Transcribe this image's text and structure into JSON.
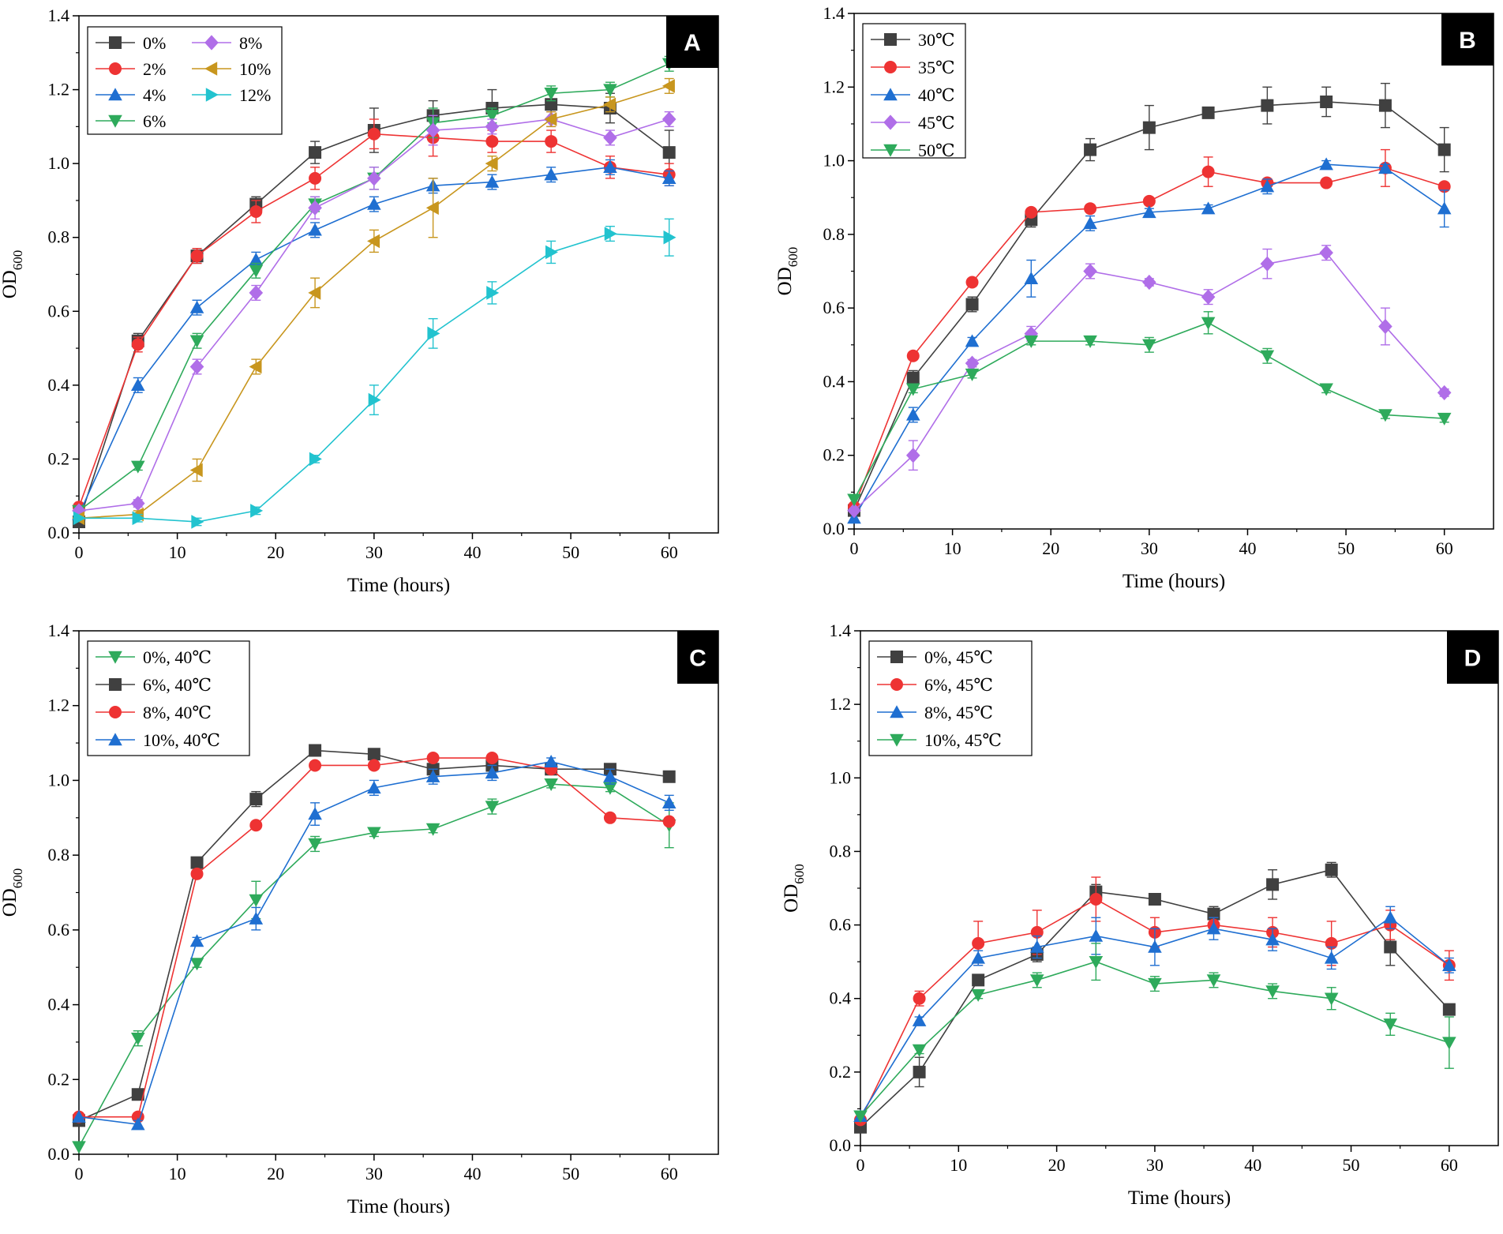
{
  "chart_data": [
    {
      "type": "line",
      "panel": "A",
      "xlabel": "Time (hours)",
      "ylabel": "OD",
      "ylabel_sub": "600",
      "xlim": [
        0,
        65
      ],
      "ylim": [
        0,
        1.4
      ],
      "xticks": [
        0,
        10,
        20,
        30,
        40,
        50,
        60
      ],
      "yticks": [
        0.0,
        0.2,
        0.4,
        0.6,
        0.8,
        1.0,
        1.2,
        1.4
      ],
      "ytick_labels": [
        "0.0",
        "0.2",
        "0.4",
        "0.6",
        "0.8",
        "1.0",
        "1.2",
        "1.4"
      ],
      "legend_columns": 2,
      "x": [
        0,
        6,
        12,
        18,
        24,
        30,
        36,
        42,
        48,
        54,
        60
      ],
      "series": [
        {
          "name": "0%",
          "marker": "square",
          "color": "#404040",
          "values": [
            0.03,
            0.52,
            0.75,
            0.89,
            1.03,
            1.09,
            1.13,
            1.15,
            1.16,
            1.15,
            1.03
          ],
          "errors": [
            0,
            0.02,
            0.02,
            0.02,
            0.03,
            0.06,
            0.04,
            0.05,
            0.04,
            0.04,
            0.06
          ]
        },
        {
          "name": "2%",
          "marker": "circle",
          "color": "#ee3333",
          "values": [
            0.07,
            0.51,
            0.75,
            0.87,
            0.96,
            1.08,
            1.07,
            1.06,
            1.06,
            0.99,
            0.97
          ],
          "errors": [
            0,
            0.02,
            0.02,
            0.03,
            0.03,
            0.04,
            0.05,
            0.03,
            0.03,
            0.03,
            0.03
          ]
        },
        {
          "name": "4%",
          "marker": "triangle-up",
          "color": "#1f6fd1",
          "values": [
            0.05,
            0.4,
            0.61,
            0.74,
            0.82,
            0.89,
            0.94,
            0.95,
            0.97,
            0.99,
            0.96
          ],
          "errors": [
            0,
            0.02,
            0.02,
            0.02,
            0.02,
            0.02,
            0.02,
            0.02,
            0.02,
            0.02,
            0.02
          ]
        },
        {
          "name": "6%",
          "marker": "triangle-down",
          "color": "#2eaa5b",
          "values": [
            0.06,
            0.18,
            0.52,
            0.71,
            0.89,
            0.96,
            1.11,
            1.13,
            1.19,
            1.2,
            1.27
          ],
          "errors": [
            0,
            0.01,
            0.02,
            0.02,
            0.02,
            0.03,
            0.04,
            0.02,
            0.02,
            0.02,
            0.02
          ]
        },
        {
          "name": "8%",
          "marker": "diamond",
          "color": "#b06ee8",
          "values": [
            0.06,
            0.08,
            0.45,
            0.65,
            0.88,
            0.96,
            1.09,
            1.1,
            1.12,
            1.07,
            1.12
          ],
          "errors": [
            0,
            0.01,
            0.02,
            0.02,
            0.03,
            0.03,
            0.04,
            0.02,
            0.02,
            0.02,
            0.02
          ]
        },
        {
          "name": "10%",
          "marker": "triangle-left",
          "color": "#c8961e",
          "values": [
            0.04,
            0.05,
            0.17,
            0.45,
            0.65,
            0.79,
            0.88,
            1.0,
            1.12,
            1.16,
            1.21
          ],
          "errors": [
            0,
            0.01,
            0.03,
            0.02,
            0.04,
            0.03,
            0.08,
            0.02,
            0.02,
            0.02,
            0.02
          ]
        },
        {
          "name": "12%",
          "marker": "triangle-right",
          "color": "#22c3cf",
          "values": [
            0.04,
            0.04,
            0.03,
            0.06,
            0.2,
            0.36,
            0.54,
            0.65,
            0.76,
            0.81,
            0.8
          ],
          "errors": [
            0,
            0.01,
            0.01,
            0.01,
            0.01,
            0.04,
            0.04,
            0.03,
            0.03,
            0.02,
            0.05
          ]
        }
      ]
    },
    {
      "type": "line",
      "panel": "B",
      "xlabel": "Time (hours)",
      "ylabel": "OD",
      "ylabel_sub": "600",
      "xlim": [
        0,
        65
      ],
      "ylim": [
        0,
        1.4
      ],
      "xticks": [
        0,
        10,
        20,
        30,
        40,
        50,
        60
      ],
      "yticks": [
        0.0,
        0.2,
        0.4,
        0.6,
        0.8,
        1.0,
        1.2,
        1.4
      ],
      "ytick_labels": [
        "0.0",
        "0.2",
        "0.4",
        "0.6",
        "0.8",
        "1.0",
        "1.2",
        "1.4"
      ],
      "legend_columns": 1,
      "x": [
        0,
        6,
        12,
        18,
        24,
        30,
        36,
        42,
        48,
        54,
        60
      ],
      "series": [
        {
          "name": "30℃",
          "marker": "square",
          "color": "#404040",
          "values": [
            0.05,
            0.41,
            0.61,
            0.84,
            1.03,
            1.09,
            1.13,
            1.15,
            1.16,
            1.15,
            1.03
          ],
          "errors": [
            0,
            0.02,
            0.02,
            0.02,
            0.03,
            0.06,
            0.01,
            0.05,
            0.04,
            0.06,
            0.06
          ]
        },
        {
          "name": "35℃",
          "marker": "circle",
          "color": "#ee3333",
          "values": [
            0.06,
            0.47,
            0.67,
            0.86,
            0.87,
            0.89,
            0.97,
            0.94,
            0.94,
            0.98,
            0.93
          ],
          "errors": [
            0,
            0.01,
            0.01,
            0.01,
            0.01,
            0.01,
            0.04,
            0.01,
            0.01,
            0.05,
            0.01
          ]
        },
        {
          "name": "40℃",
          "marker": "triangle-up",
          "color": "#1f6fd1",
          "values": [
            0.03,
            0.31,
            0.51,
            0.68,
            0.83,
            0.86,
            0.87,
            0.93,
            0.99,
            0.98,
            0.87
          ],
          "errors": [
            0,
            0.02,
            0.01,
            0.05,
            0.02,
            0.01,
            0.01,
            0.02,
            0.01,
            0.01,
            0.05
          ]
        },
        {
          "name": "45℃",
          "marker": "diamond",
          "color": "#b06ee8",
          "values": [
            0.05,
            0.2,
            0.45,
            0.53,
            0.7,
            0.67,
            0.63,
            0.72,
            0.75,
            0.55,
            0.37
          ],
          "errors": [
            0,
            0.04,
            0.01,
            0.02,
            0.02,
            0.01,
            0.02,
            0.04,
            0.02,
            0.05,
            0.01
          ]
        },
        {
          "name": "50℃",
          "marker": "triangle-down",
          "color": "#2eaa5b",
          "values": [
            0.08,
            0.38,
            0.42,
            0.51,
            0.51,
            0.5,
            0.56,
            0.47,
            0.38,
            0.31,
            0.3
          ],
          "errors": [
            0,
            0.01,
            0.01,
            0.01,
            0.01,
            0.02,
            0.03,
            0.02,
            0.01,
            0.01,
            0.01
          ]
        }
      ]
    },
    {
      "type": "line",
      "panel": "C",
      "xlabel": "Time (hours)",
      "ylabel": "OD",
      "ylabel_sub": "600",
      "xlim": [
        0,
        65
      ],
      "ylim": [
        0,
        1.4
      ],
      "xticks": [
        0,
        10,
        20,
        30,
        40,
        50,
        60
      ],
      "yticks": [
        0.0,
        0.2,
        0.4,
        0.6,
        0.8,
        1.0,
        1.2,
        1.4
      ],
      "ytick_labels": [
        "0.0",
        "0.2",
        "0.4",
        "0.6",
        "0.8",
        "1.0",
        "1.2",
        "1.4"
      ],
      "legend_columns": 1,
      "x": [
        0,
        6,
        12,
        18,
        24,
        30,
        36,
        42,
        48,
        54,
        60
      ],
      "series": [
        {
          "name": "0%, 40℃",
          "marker": "triangle-down",
          "color": "#2eaa5b",
          "values": [
            0.02,
            0.31,
            0.51,
            0.68,
            0.83,
            0.86,
            0.87,
            0.93,
            0.99,
            0.98,
            0.88
          ],
          "errors": [
            0,
            0.02,
            0.01,
            0.05,
            0.02,
            0.01,
            0.01,
            0.02,
            0.01,
            0.01,
            0.06
          ]
        },
        {
          "name": "6%, 40℃",
          "marker": "square",
          "color": "#404040",
          "values": [
            0.09,
            0.16,
            0.78,
            0.95,
            1.08,
            1.07,
            1.03,
            1.04,
            1.03,
            1.03,
            1.01
          ],
          "errors": [
            0,
            0.01,
            0.01,
            0.02,
            0.01,
            0.01,
            0.02,
            0.01,
            0.01,
            0.01,
            0.01
          ]
        },
        {
          "name": "8%, 40℃",
          "marker": "circle",
          "color": "#ee3333",
          "values": [
            0.1,
            0.1,
            0.75,
            0.88,
            1.04,
            1.04,
            1.06,
            1.06,
            1.03,
            0.9,
            0.89
          ],
          "errors": [
            0,
            0.01,
            0.01,
            0.01,
            0.01,
            0.01,
            0.01,
            0.01,
            0.01,
            0.01,
            0.01
          ]
        },
        {
          "name": "10%, 40℃",
          "marker": "triangle-up",
          "color": "#1f6fd1",
          "values": [
            0.1,
            0.08,
            0.57,
            0.63,
            0.91,
            0.98,
            1.01,
            1.02,
            1.05,
            1.01,
            0.94
          ],
          "errors": [
            0,
            0.01,
            0.01,
            0.03,
            0.03,
            0.02,
            0.02,
            0.02,
            0.01,
            0.02,
            0.02
          ]
        }
      ]
    },
    {
      "type": "line",
      "panel": "D",
      "xlabel": "Time (hours)",
      "ylabel": "OD",
      "ylabel_sub": "600",
      "xlim": [
        0,
        65
      ],
      "ylim": [
        0,
        1.4
      ],
      "xticks": [
        0,
        10,
        20,
        30,
        40,
        50,
        60
      ],
      "yticks": [
        0.0,
        0.2,
        0.4,
        0.6,
        0.8,
        1.0,
        1.2,
        1.4
      ],
      "ytick_labels": [
        "0.0",
        "0.2",
        "0.4",
        "0.6",
        "0.8",
        "1.0",
        "1.2",
        "1.4"
      ],
      "legend_columns": 1,
      "x": [
        0,
        6,
        12,
        18,
        24,
        30,
        36,
        42,
        48,
        54,
        60
      ],
      "series": [
        {
          "name": "0%, 45℃",
          "marker": "square",
          "color": "#404040",
          "values": [
            0.05,
            0.2,
            0.45,
            0.52,
            0.69,
            0.67,
            0.63,
            0.71,
            0.75,
            0.54,
            0.37
          ],
          "errors": [
            0,
            0.04,
            0.01,
            0.02,
            0.02,
            0.01,
            0.02,
            0.04,
            0.02,
            0.05,
            0.01
          ]
        },
        {
          "name": "6%, 45℃",
          "marker": "circle",
          "color": "#ee3333",
          "values": [
            0.07,
            0.4,
            0.55,
            0.58,
            0.67,
            0.58,
            0.6,
            0.58,
            0.55,
            0.6,
            0.49
          ],
          "errors": [
            0,
            0.02,
            0.06,
            0.06,
            0.06,
            0.04,
            0.02,
            0.04,
            0.06,
            0.04,
            0.04
          ]
        },
        {
          "name": "8%, 45℃",
          "marker": "triangle-up",
          "color": "#1f6fd1",
          "values": [
            0.08,
            0.34,
            0.51,
            0.54,
            0.57,
            0.54,
            0.59,
            0.56,
            0.51,
            0.62,
            0.49
          ],
          "errors": [
            0,
            0.01,
            0.02,
            0.03,
            0.05,
            0.05,
            0.03,
            0.03,
            0.03,
            0.03,
            0.02
          ]
        },
        {
          "name": "10%, 45℃",
          "marker": "triangle-down",
          "color": "#2eaa5b",
          "values": [
            0.08,
            0.26,
            0.41,
            0.45,
            0.5,
            0.44,
            0.45,
            0.42,
            0.4,
            0.33,
            0.28
          ],
          "errors": [
            0,
            0.01,
            0.01,
            0.02,
            0.05,
            0.02,
            0.02,
            0.02,
            0.03,
            0.03,
            0.07
          ]
        }
      ]
    }
  ]
}
